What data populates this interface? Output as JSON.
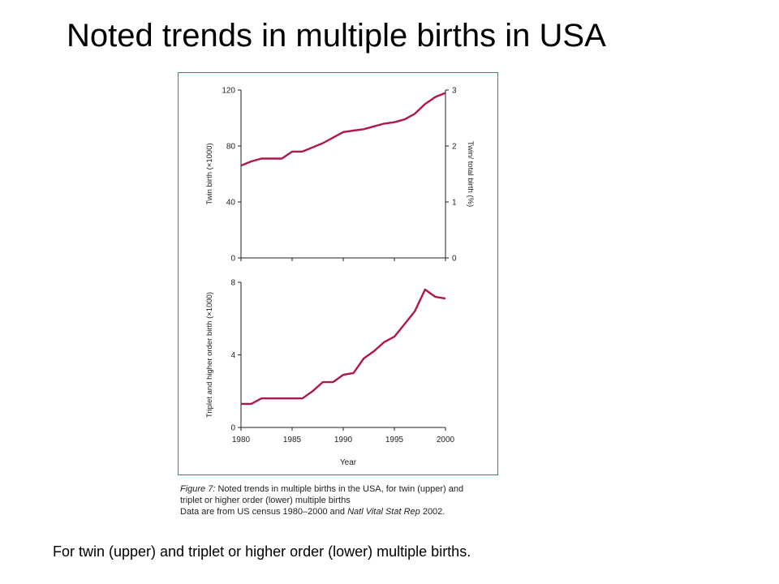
{
  "slide": {
    "title": "Noted trends in multiple births in USA",
    "footer": "For twin (upper) and triplet or higher order (lower) multiple births."
  },
  "caption": {
    "fig_label": "Figure 7:",
    "line1_rest": " Noted trends in multiple births in the USA, for twin (upper) and",
    "line2": "triplet or higher order (lower) multiple births",
    "line3_prefix": "Data are from US census 1980–2000 and ",
    "journal": "Natl Vital Stat Rep",
    "line3_suffix": " 2002."
  },
  "colors": {
    "line": "#b0164e",
    "frame": "#2e9467",
    "axis": "#222222"
  },
  "chart_data": [
    {
      "type": "line",
      "ylabel": "Twin birth (×1000)",
      "y2label": "Twin/ total birth (%)",
      "xlim": [
        1980,
        2000
      ],
      "ylim": [
        0,
        120
      ],
      "yticks": [
        0,
        40,
        80,
        120
      ],
      "y2lim": [
        0,
        3
      ],
      "y2ticks": [
        0,
        1,
        2,
        3
      ],
      "series": [
        {
          "x": [
            1980,
            1981,
            1982,
            1983,
            1984,
            1985,
            1986,
            1987,
            1988,
            1989,
            1990,
            1991,
            1992,
            1993,
            1994,
            1995,
            1996,
            1997,
            1998,
            1999,
            2000
          ],
          "y": [
            66,
            69,
            71,
            71,
            71,
            76,
            76,
            79,
            82,
            86,
            90,
            91,
            92,
            94,
            96,
            97,
            99,
            103,
            110,
            115,
            118
          ]
        }
      ]
    },
    {
      "type": "line",
      "ylabel": "Triplet and higher order birth (×1000)",
      "xlabel": "Year",
      "xlim": [
        1980,
        2000
      ],
      "xticks": [
        1980,
        1985,
        1990,
        1995,
        2000
      ],
      "ylim": [
        0,
        8
      ],
      "yticks": [
        0,
        4,
        8
      ],
      "series": [
        {
          "x": [
            1980,
            1981,
            1982,
            1983,
            1984,
            1985,
            1986,
            1987,
            1988,
            1989,
            1990,
            1991,
            1992,
            1993,
            1994,
            1995,
            1996,
            1997,
            1998,
            1999,
            2000
          ],
          "y": [
            1.3,
            1.3,
            1.6,
            1.6,
            1.6,
            1.6,
            1.6,
            2.0,
            2.5,
            2.5,
            2.9,
            3.0,
            3.8,
            4.2,
            4.7,
            5.0,
            5.7,
            6.4,
            7.6,
            7.2,
            7.1
          ]
        }
      ]
    }
  ]
}
